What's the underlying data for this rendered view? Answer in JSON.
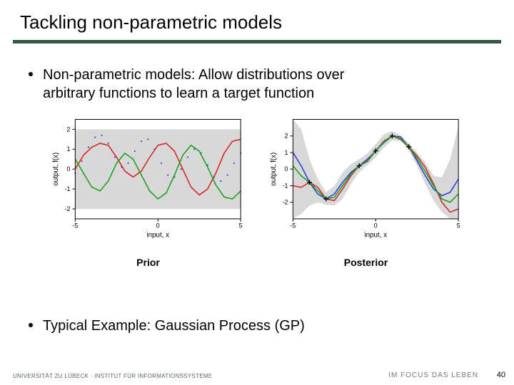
{
  "title": "Tackling non-parametric models",
  "bullet1_line1": "Non-parametric models: Allow distributions over",
  "bullet1_line2": "arbitrary functions to learn a target function",
  "bullet2": "Typical Example: Gaussian Process (GP)",
  "footer_left": "UNIVERSITÄT ZU LÜBECK · INSTITUT FÜR INFORMATIONSSYSTEME",
  "footer_right": "IM FOCUS DAS LEBEN",
  "page_number": "40",
  "chart_prior": {
    "caption": "Prior",
    "type": "line",
    "xlabel": "input, x",
    "ylabel": "output, f(x)",
    "xlim": [
      -5,
      5
    ],
    "ylim": [
      -2.5,
      2.5
    ],
    "xticks": [
      -5,
      0,
      5
    ],
    "yticks": [
      -2,
      -1,
      0,
      1,
      2
    ],
    "background_color": "#ffffff",
    "axis_box_color": "#000000",
    "confidence_band": {
      "ymin": -2,
      "ymax": 2,
      "color": "#d8d8d8"
    },
    "series": [
      {
        "name": "red",
        "color": "#d92424",
        "style": "solid",
        "line_width": 1.6,
        "points": [
          [
            -5,
            0.0
          ],
          [
            -4.5,
            0.7
          ],
          [
            -4,
            1.1
          ],
          [
            -3.5,
            1.3
          ],
          [
            -3,
            1.2
          ],
          [
            -2.5,
            0.6
          ],
          [
            -2,
            -0.1
          ],
          [
            -1.5,
            -0.4
          ],
          [
            -1,
            -0.1
          ],
          [
            -0.5,
            0.6
          ],
          [
            0,
            1.2
          ],
          [
            0.5,
            1.3
          ],
          [
            1,
            0.9
          ],
          [
            1.5,
            0.0
          ],
          [
            2,
            -0.9
          ],
          [
            2.5,
            -1.3
          ],
          [
            3,
            -1.0
          ],
          [
            3.5,
            -0.2
          ],
          [
            4,
            0.8
          ],
          [
            4.5,
            1.4
          ],
          [
            5,
            1.5
          ]
        ]
      },
      {
        "name": "green",
        "color": "#1aa31a",
        "style": "solid",
        "line_width": 1.6,
        "points": [
          [
            -5,
            0.5
          ],
          [
            -4.5,
            -0.2
          ],
          [
            -4,
            -0.9
          ],
          [
            -3.5,
            -1.1
          ],
          [
            -3,
            -0.6
          ],
          [
            -2.5,
            0.3
          ],
          [
            -2,
            0.8
          ],
          [
            -1.5,
            0.5
          ],
          [
            -1,
            -0.3
          ],
          [
            -0.5,
            -1.1
          ],
          [
            0,
            -1.5
          ],
          [
            0.5,
            -1.2
          ],
          [
            1,
            -0.3
          ],
          [
            1.5,
            0.7
          ],
          [
            2,
            1.2
          ],
          [
            2.5,
            0.9
          ],
          [
            3,
            0.1
          ],
          [
            3.5,
            -0.8
          ],
          [
            4,
            -1.4
          ],
          [
            4.5,
            -1.5
          ],
          [
            5,
            -1.1
          ]
        ]
      },
      {
        "name": "blue-dots",
        "color": "#2b3fd6",
        "style": "dotted",
        "line_width": 1.4,
        "points": [
          [
            -5,
            -0.2
          ],
          [
            -4.6,
            0.4
          ],
          [
            -4.2,
            1.1
          ],
          [
            -3.8,
            1.6
          ],
          [
            -3.4,
            1.7
          ],
          [
            -3.0,
            1.3
          ],
          [
            -2.6,
            0.6
          ],
          [
            -2.2,
            0.1
          ],
          [
            -1.8,
            0.3
          ],
          [
            -1.4,
            0.9
          ],
          [
            -1.0,
            1.4
          ],
          [
            -0.6,
            1.5
          ],
          [
            -0.2,
            1.0
          ],
          [
            0.2,
            0.3
          ],
          [
            0.6,
            -0.3
          ],
          [
            1.0,
            -0.4
          ],
          [
            1.4,
            0.0
          ],
          [
            1.8,
            0.6
          ],
          [
            2.2,
            1.0
          ],
          [
            2.6,
            0.8
          ],
          [
            3.0,
            0.2
          ],
          [
            3.4,
            -0.4
          ],
          [
            3.8,
            -0.6
          ],
          [
            4.2,
            -0.3
          ],
          [
            4.6,
            0.3
          ],
          [
            5.0,
            0.8
          ]
        ]
      }
    ]
  },
  "chart_posterior": {
    "caption": "Posterior",
    "type": "line",
    "xlabel": "input, x",
    "ylabel": "output, f(x)",
    "xlim": [
      -5,
      5
    ],
    "ylim": [
      -3,
      3
    ],
    "xticks": [
      -5,
      0,
      5
    ],
    "yticks": [
      -2,
      -1,
      0,
      1,
      2
    ],
    "background_color": "#ffffff",
    "axis_box_color": "#000000",
    "confidence_band": {
      "color": "#d8d8d8",
      "upper": [
        [
          -5,
          3
        ],
        [
          -4.5,
          2.4
        ],
        [
          -4,
          0.6
        ],
        [
          -3.5,
          -0.6
        ],
        [
          -3,
          -1.4
        ],
        [
          -2.5,
          -1.0
        ],
        [
          -2,
          -0.2
        ],
        [
          -1.5,
          0.3
        ],
        [
          -1,
          0.6
        ],
        [
          -0.5,
          0.95
        ],
        [
          0,
          1.5
        ],
        [
          0.5,
          2.1
        ],
        [
          1,
          2.3
        ],
        [
          1.5,
          2.05
        ],
        [
          2,
          1.55
        ],
        [
          2.5,
          1.0
        ],
        [
          3,
          0.4
        ],
        [
          3.5,
          -0.4
        ],
        [
          4,
          -0.5
        ],
        [
          4.5,
          0.6
        ],
        [
          5,
          2.6
        ]
      ],
      "lower": [
        [
          -5,
          -3
        ],
        [
          -4.5,
          -2.7
        ],
        [
          -4,
          -2.2
        ],
        [
          -3.5,
          -2.0
        ],
        [
          -3,
          -2.15
        ],
        [
          -2.5,
          -2.2
        ],
        [
          -2,
          -1.8
        ],
        [
          -1.5,
          -0.9
        ],
        [
          -1,
          -0.2
        ],
        [
          -0.5,
          0.25
        ],
        [
          0,
          0.7
        ],
        [
          0.5,
          1.3
        ],
        [
          1,
          1.75
        ],
        [
          1.5,
          1.7
        ],
        [
          2,
          1.15
        ],
        [
          2.5,
          0.2
        ],
        [
          3,
          -0.9
        ],
        [
          3.5,
          -1.9
        ],
        [
          4,
          -2.6
        ],
        [
          4.5,
          -3
        ],
        [
          5,
          -3
        ]
      ]
    },
    "observations": {
      "marker": "plus",
      "color": "#000000",
      "size": 7,
      "points": [
        [
          -4,
          -0.8
        ],
        [
          -3,
          -1.8
        ],
        [
          -1,
          0.2
        ],
        [
          0,
          1.1
        ],
        [
          1,
          2.0
        ],
        [
          2,
          1.35
        ]
      ]
    },
    "series": [
      {
        "name": "blue",
        "color": "#2b3fd6",
        "style": "solid",
        "line_width": 1.6,
        "points": [
          [
            -5,
            1.0
          ],
          [
            -4.5,
            0.2
          ],
          [
            -4,
            -0.8
          ],
          [
            -3.5,
            -1.5
          ],
          [
            -3,
            -1.8
          ],
          [
            -2.5,
            -1.5
          ],
          [
            -2,
            -0.8
          ],
          [
            -1.5,
            -0.2
          ],
          [
            -1,
            0.2
          ],
          [
            -0.5,
            0.6
          ],
          [
            0,
            1.1
          ],
          [
            0.5,
            1.6
          ],
          [
            1,
            2.0
          ],
          [
            1.5,
            1.95
          ],
          [
            2,
            1.35
          ],
          [
            2.5,
            0.5
          ],
          [
            3,
            -0.4
          ],
          [
            3.5,
            -1.2
          ],
          [
            4,
            -1.6
          ],
          [
            4.5,
            -1.4
          ],
          [
            5,
            -0.6
          ]
        ]
      },
      {
        "name": "red",
        "color": "#d92424",
        "style": "solid",
        "line_width": 1.6,
        "points": [
          [
            -5,
            -1.0
          ],
          [
            -4.5,
            -1.1
          ],
          [
            -4,
            -0.8
          ],
          [
            -3.5,
            -1.1
          ],
          [
            -3,
            -1.8
          ],
          [
            -2.5,
            -1.9
          ],
          [
            -2,
            -1.2
          ],
          [
            -1.5,
            -0.4
          ],
          [
            -1,
            0.2
          ],
          [
            -0.5,
            0.5
          ],
          [
            0,
            1.1
          ],
          [
            0.5,
            1.7
          ],
          [
            1,
            2.0
          ],
          [
            1.5,
            1.8
          ],
          [
            2,
            1.35
          ],
          [
            2.5,
            0.8
          ],
          [
            3,
            0.1
          ],
          [
            3.5,
            -0.9
          ],
          [
            4,
            -2.0
          ],
          [
            4.5,
            -2.6
          ],
          [
            5,
            -2.4
          ]
        ]
      },
      {
        "name": "green",
        "color": "#1aa31a",
        "style": "solid",
        "line_width": 1.6,
        "points": [
          [
            -5,
            0.2
          ],
          [
            -4.5,
            -0.4
          ],
          [
            -4,
            -0.8
          ],
          [
            -3.5,
            -1.3
          ],
          [
            -3,
            -1.8
          ],
          [
            -2.5,
            -1.7
          ],
          [
            -2,
            -1.0
          ],
          [
            -1.5,
            -0.3
          ],
          [
            -1,
            0.2
          ],
          [
            -0.5,
            0.45
          ],
          [
            0,
            1.1
          ],
          [
            0.5,
            1.65
          ],
          [
            1,
            2.0
          ],
          [
            1.5,
            1.85
          ],
          [
            2,
            1.35
          ],
          [
            2.5,
            0.65
          ],
          [
            3,
            -0.15
          ],
          [
            3.5,
            -1.0
          ],
          [
            4,
            -1.8
          ],
          [
            4.5,
            -2.0
          ],
          [
            5,
            -1.5
          ]
        ]
      }
    ]
  }
}
